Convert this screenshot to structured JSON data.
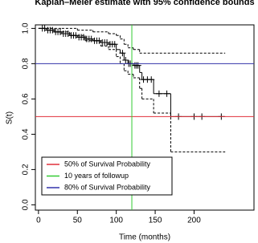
{
  "chart_data": {
    "type": "kaplan-meier",
    "title": "Kaplan–Meier estimate with 95% confidence bounds",
    "x_label": "Time (months)",
    "y_label": "S(t)",
    "xlim": [
      -4,
      277
    ],
    "ylim": [
      -0.03,
      1.02
    ],
    "xticks": [
      0,
      50,
      100,
      150,
      200
    ],
    "yticks": [
      {
        "value": 0,
        "label": "0.0"
      },
      {
        "value": 0.2,
        "label": "0.2"
      },
      {
        "value": 0.4,
        "label": "0.4"
      },
      {
        "value": 0.6,
        "label": "0.6"
      },
      {
        "value": 0.8,
        "label": "0.8"
      },
      {
        "value": 1,
        "label": "1.0"
      }
    ],
    "estimate": {
      "color": "#000000",
      "x": [
        0,
        10,
        20,
        30,
        40,
        50,
        60,
        70,
        80,
        90,
        100,
        105,
        110,
        115,
        122,
        130,
        133,
        148,
        170,
        240
      ],
      "values": [
        1.0,
        0.99,
        0.98,
        0.97,
        0.96,
        0.95,
        0.94,
        0.93,
        0.92,
        0.91,
        0.88,
        0.86,
        0.82,
        0.8,
        0.79,
        0.75,
        0.71,
        0.63,
        0.5,
        0.5
      ]
    },
    "upper": {
      "color": "#000000",
      "x": [
        0,
        30,
        50,
        70,
        90,
        100,
        105,
        110,
        115,
        122,
        130,
        240
      ],
      "values": [
        1.0,
        1.0,
        0.99,
        0.98,
        0.97,
        0.96,
        0.94,
        0.91,
        0.89,
        0.88,
        0.86,
        0.86
      ]
    },
    "lower": {
      "color": "#000000",
      "x": [
        0,
        20,
        40,
        60,
        80,
        90,
        100,
        105,
        110,
        115,
        122,
        130,
        133,
        148,
        170,
        240
      ],
      "values": [
        1.0,
        0.98,
        0.96,
        0.93,
        0.9,
        0.88,
        0.84,
        0.8,
        0.76,
        0.74,
        0.72,
        0.66,
        0.6,
        0.52,
        0.3,
        0.3
      ]
    },
    "censored": {
      "color": "#000000",
      "x": [
        5,
        8,
        12,
        15,
        18,
        22,
        25,
        28,
        32,
        35,
        38,
        42,
        45,
        48,
        52,
        55,
        58,
        62,
        65,
        68,
        72,
        75,
        78,
        82,
        85,
        88,
        92,
        95,
        98,
        108,
        112,
        116,
        118,
        120,
        124,
        126,
        128,
        135,
        140,
        145,
        155,
        165,
        180,
        200,
        210,
        235
      ],
      "values": [
        1.0,
        1.0,
        0.99,
        0.99,
        0.99,
        0.98,
        0.98,
        0.98,
        0.97,
        0.97,
        0.97,
        0.96,
        0.96,
        0.96,
        0.95,
        0.95,
        0.95,
        0.94,
        0.94,
        0.94,
        0.93,
        0.93,
        0.93,
        0.92,
        0.92,
        0.92,
        0.91,
        0.91,
        0.91,
        0.86,
        0.82,
        0.8,
        0.8,
        0.8,
        0.79,
        0.79,
        0.79,
        0.71,
        0.71,
        0.71,
        0.63,
        0.63,
        0.5,
        0.5,
        0.5,
        0.5
      ]
    },
    "reference_lines": [
      {
        "name": "50% of Survival Probability",
        "color": "#e0303a",
        "orientation": "horizontal",
        "value": 0.5
      },
      {
        "name": "10 years of followup",
        "color": "#33cc33",
        "orientation": "vertical",
        "value": 120
      },
      {
        "name": "80% of Survival Probability",
        "color": "#3333aa",
        "orientation": "horizontal",
        "value": 0.8
      }
    ]
  }
}
